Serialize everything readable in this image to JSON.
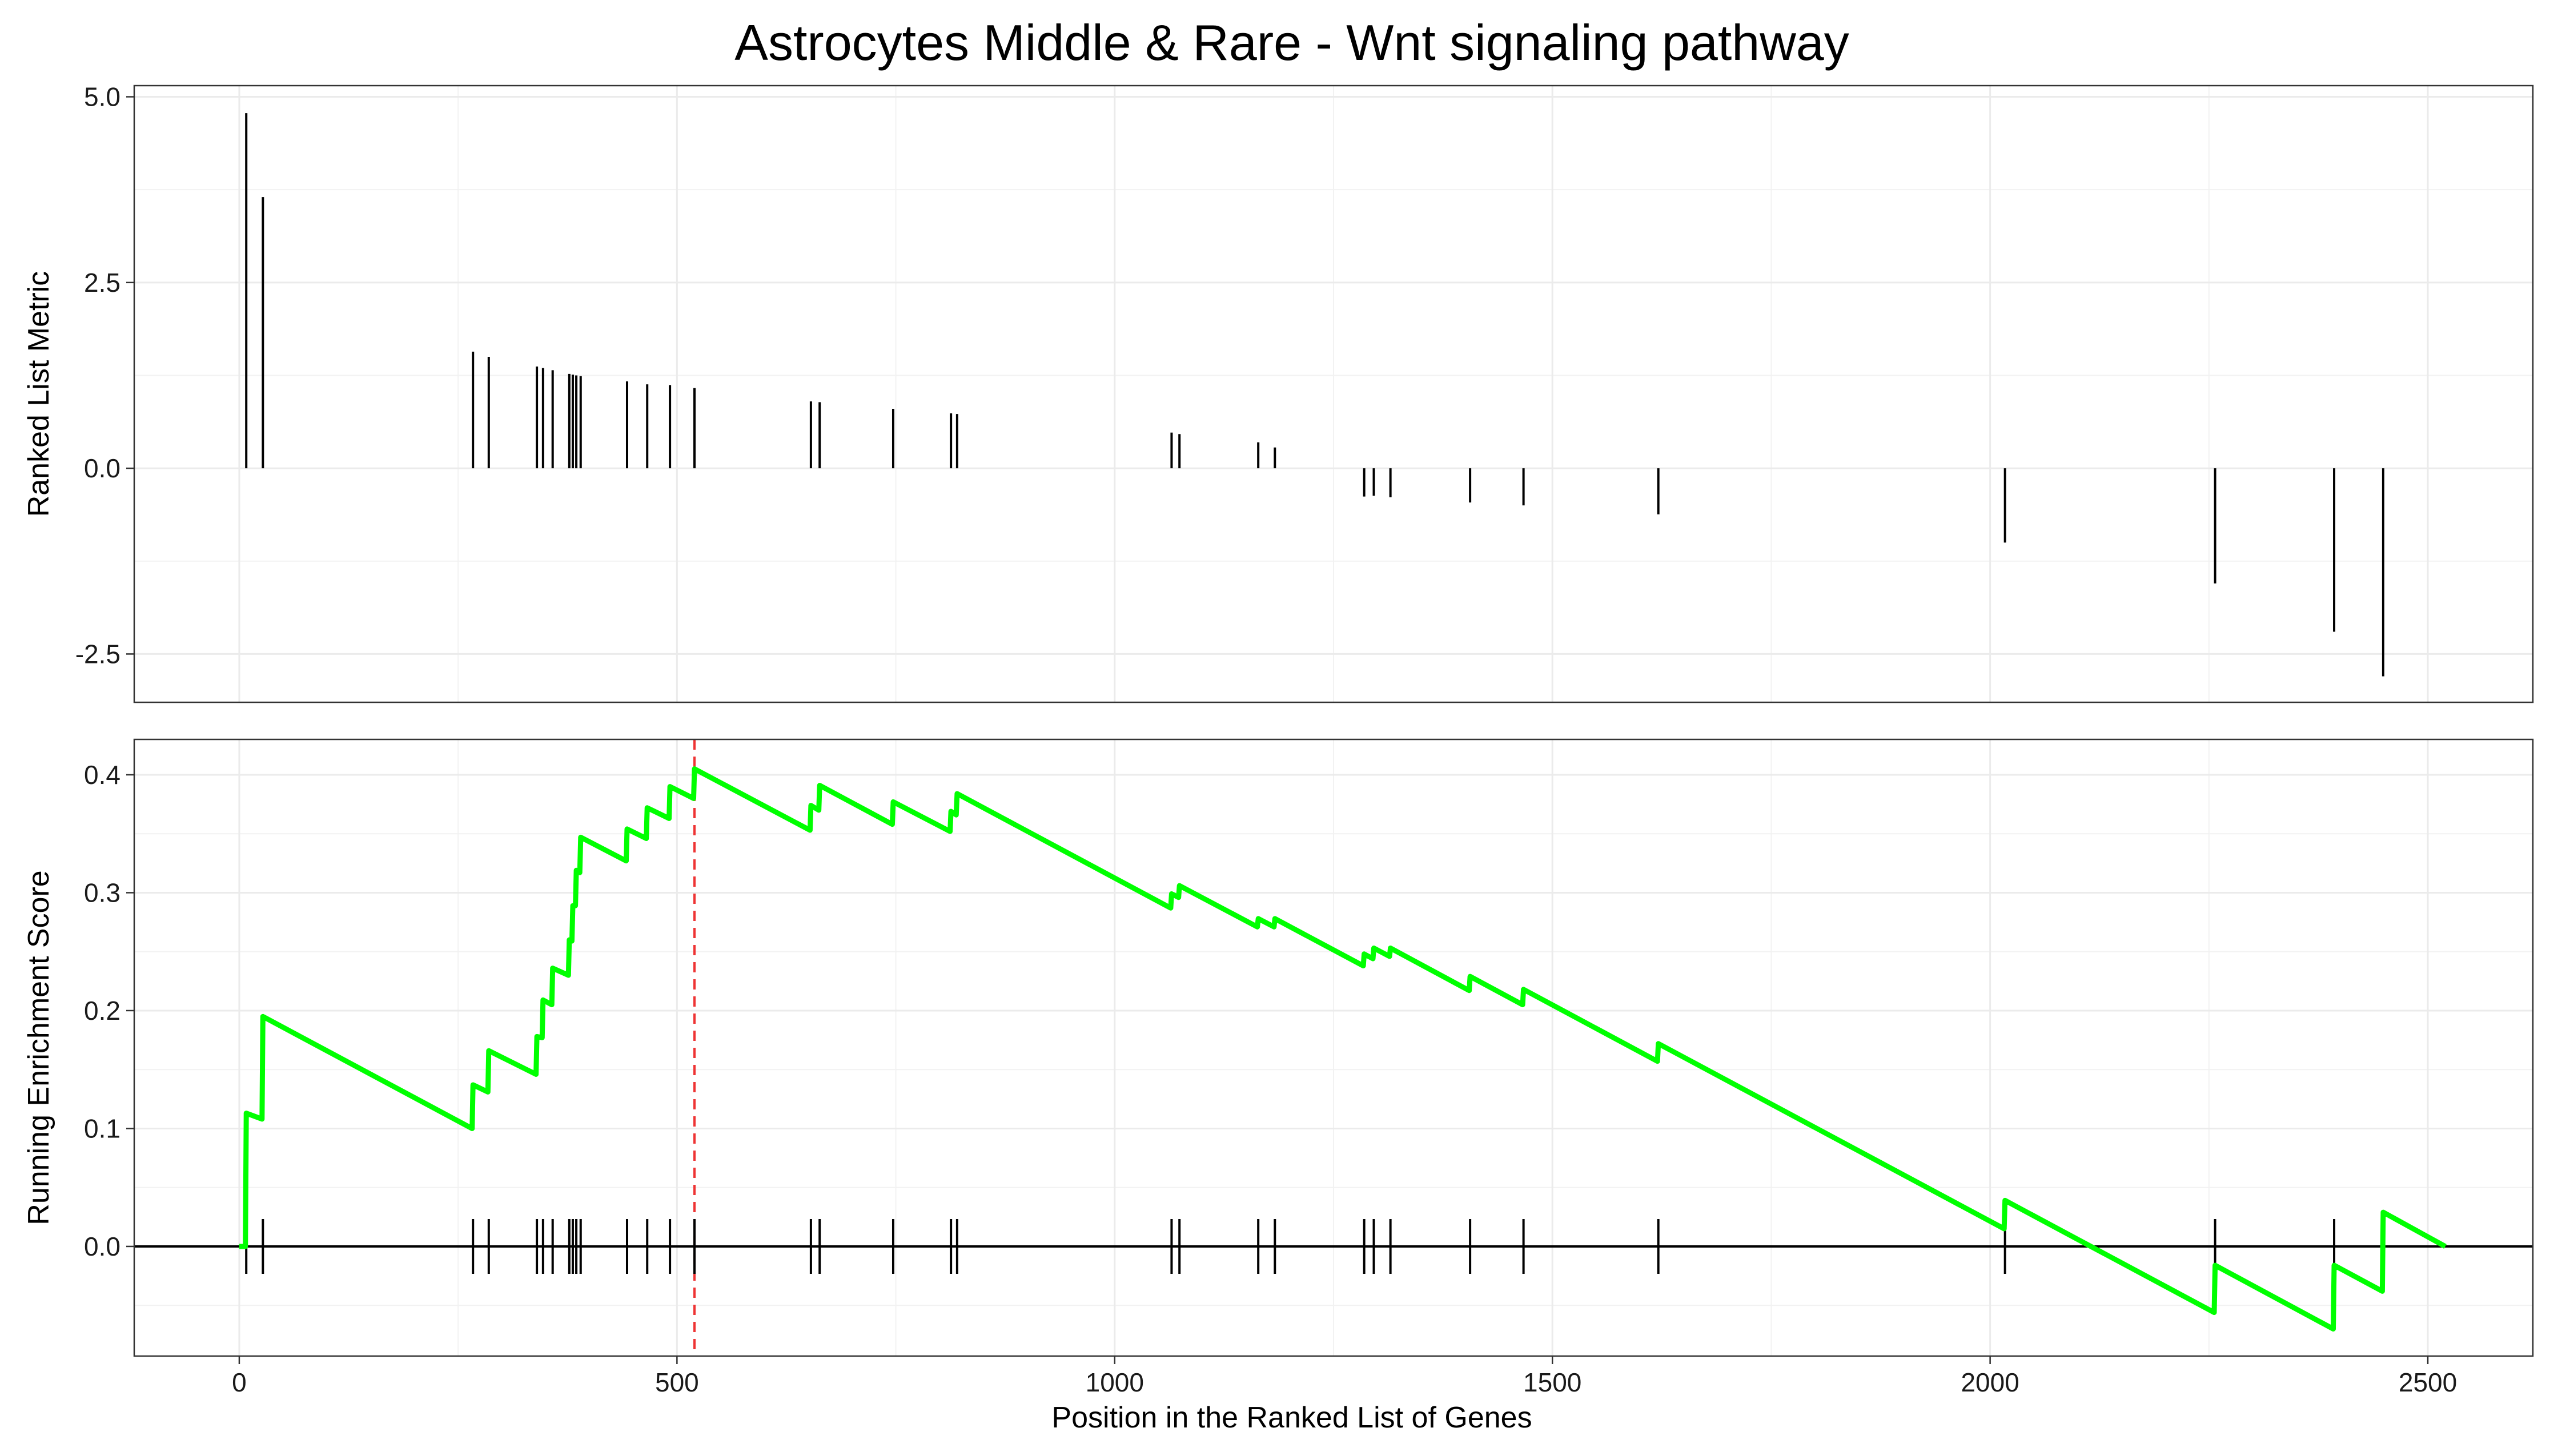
{
  "chart_data": [
    {
      "type": "bar",
      "title": "Astrocytes Middle & Rare - Wnt signaling pathway",
      "xlabel": "",
      "ylabel": "Ranked List Metric",
      "xlim": [
        -120,
        2620
      ],
      "ylim": [
        -3.15,
        5.15
      ],
      "x_ticks": [
        0,
        500,
        1000,
        1500,
        2000,
        2500
      ],
      "y_ticks": [
        -2.5,
        0,
        2.5,
        5
      ],
      "y_tick_labels": [
        "-2.5",
        "0.0",
        "2.5",
        "5.0"
      ],
      "grid": true,
      "x": [
        8,
        27,
        267,
        285,
        340,
        347,
        358,
        377,
        381,
        385,
        390,
        443,
        466,
        492,
        520,
        653,
        663,
        747,
        813,
        820,
        1065,
        1074,
        1164,
        1183,
        1285,
        1296,
        1315,
        1406,
        1467,
        1621,
        2017,
        2257,
        2393,
        2449
      ],
      "values": [
        4.78,
        3.65,
        1.57,
        1.5,
        1.37,
        1.35,
        1.32,
        1.27,
        1.26,
        1.25,
        1.24,
        1.17,
        1.13,
        1.12,
        1.08,
        0.9,
        0.89,
        0.8,
        0.74,
        0.73,
        0.48,
        0.46,
        0.35,
        0.28,
        -0.38,
        -0.37,
        -0.39,
        -0.46,
        -0.5,
        -0.62,
        -1.0,
        -1.55,
        -2.2,
        -2.8
      ]
    },
    {
      "type": "line",
      "title": "",
      "xlabel": "Position in the Ranked List of Genes",
      "ylabel": "Running Enrichment Score",
      "xlim": [
        -120,
        2620
      ],
      "ylim": [
        -0.093,
        0.43
      ],
      "x_ticks": [
        0,
        500,
        1000,
        1500,
        2000,
        2500
      ],
      "x_tick_labels": [
        "0",
        "500",
        "1000",
        "1500",
        "2000",
        "2500"
      ],
      "y_ticks": [
        0,
        0.1,
        0.2,
        0.3,
        0.4
      ],
      "y_tick_labels": [
        "0.0",
        "0.1",
        "0.2",
        "0.3",
        "0.4"
      ],
      "grid": true,
      "peak_x": 520,
      "series": [
        {
          "color": "#00ff00",
          "x": [
            0,
            7,
            8,
            26,
            27,
            266,
            267,
            284,
            285,
            339,
            340,
            346,
            347,
            357,
            358,
            376,
            377,
            380,
            381,
            384,
            385,
            389,
            390,
            442,
            443,
            465,
            466,
            491,
            492,
            519,
            520,
            652,
            653,
            662,
            663,
            746,
            747,
            812,
            813,
            819,
            820,
            1064,
            1065,
            1073,
            1074,
            1163,
            1164,
            1182,
            1183,
            1284,
            1285,
            1295,
            1296,
            1314,
            1315,
            1405,
            1406,
            1466,
            1467,
            1620,
            1621,
            2016,
            2017,
            2256,
            2257,
            2392,
            2393,
            2448,
            2449,
            2520
          ],
          "values": [
            0.0,
            0.0,
            0.113,
            0.108,
            0.195,
            0.1,
            0.137,
            0.131,
            0.166,
            0.146,
            0.178,
            0.177,
            0.209,
            0.205,
            0.236,
            0.23,
            0.26,
            0.259,
            0.289,
            0.289,
            0.319,
            0.317,
            0.347,
            0.327,
            0.354,
            0.346,
            0.372,
            0.363,
            0.39,
            0.38,
            0.405,
            0.353,
            0.374,
            0.37,
            0.391,
            0.358,
            0.377,
            0.352,
            0.369,
            0.366,
            0.384,
            0.287,
            0.299,
            0.296,
            0.306,
            0.271,
            0.278,
            0.271,
            0.278,
            0.238,
            0.248,
            0.244,
            0.253,
            0.246,
            0.253,
            0.217,
            0.229,
            0.205,
            0.218,
            0.157,
            0.172,
            0.015,
            0.039,
            -0.056,
            -0.016,
            -0.07,
            -0.016,
            -0.038,
            0.029,
            0.0
          ]
        }
      ],
      "hits": [
        8,
        27,
        267,
        285,
        340,
        347,
        358,
        377,
        381,
        385,
        390,
        443,
        466,
        492,
        520,
        653,
        663,
        747,
        813,
        820,
        1065,
        1074,
        1164,
        1183,
        1285,
        1296,
        1315,
        1406,
        1467,
        1621,
        2017,
        2257,
        2393,
        2449
      ]
    }
  ]
}
